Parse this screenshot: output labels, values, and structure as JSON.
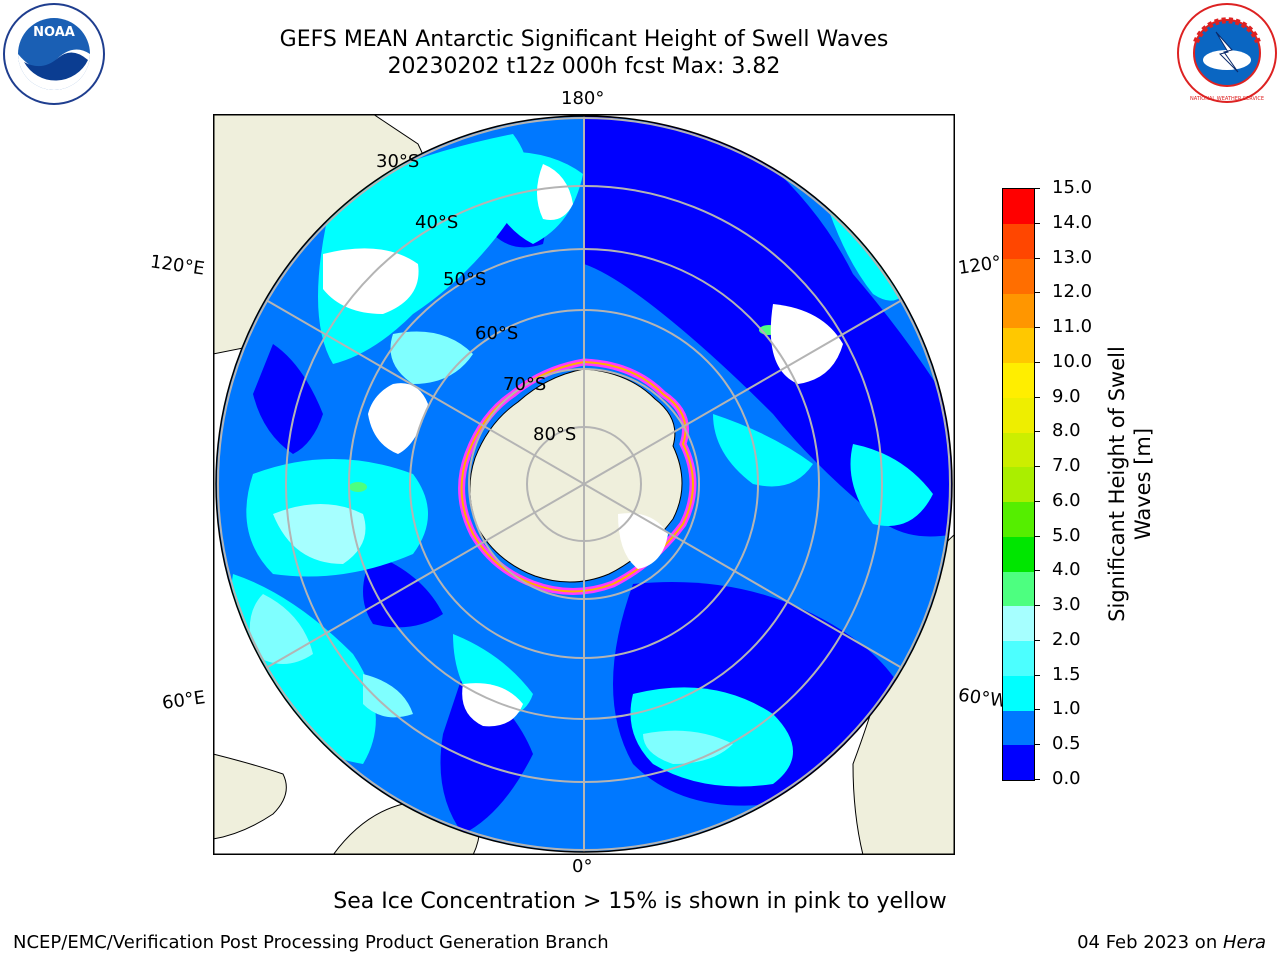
{
  "header": {
    "title_line1": "GEFS MEAN Antarctic Significant Height of Swell Waves",
    "title_line2": "20230202 t12z 000h fcst   Max: 3.82"
  },
  "map": {
    "longitude_labels": {
      "top": "180°",
      "bottom": "0°",
      "upper_left": "120°E",
      "upper_right": "120°",
      "lower_left": "60°E",
      "lower_right": "60°W"
    },
    "latitude_labels": [
      "30°S",
      "40°S",
      "50°S",
      "60°S",
      "70°S",
      "80°S"
    ],
    "colors": {
      "ocean_base": "#0078ff",
      "deep_blue": "#0000ff",
      "cyan": "#00ffff",
      "light_cyan": "#7fffff",
      "land": "#efefdc",
      "ice_edge": "#ff3cff"
    }
  },
  "colorbar": {
    "title": "Significant Height of Swell Waves [m]",
    "ticks": [
      "0.0",
      "0.5",
      "1.0",
      "1.5",
      "2.0",
      "3.0",
      "4.0",
      "5.0",
      "6.0",
      "7.0",
      "8.0",
      "9.0",
      "10.0",
      "11.0",
      "12.0",
      "13.0",
      "14.0",
      "15.0"
    ],
    "colors": [
      "#0000ff",
      "#0078ff",
      "#00ffff",
      "#4cffff",
      "#a6ffff",
      "#4dff80",
      "#00e600",
      "#55ee00",
      "#aaee00",
      "#ccee00",
      "#eeee00",
      "#ffee00",
      "#ffc800",
      "#ff9600",
      "#ff6e00",
      "#ff4600",
      "#ff0000"
    ]
  },
  "footer": {
    "sea_ice_note": "Sea Ice Concentration > 15% is shown in pink to yellow",
    "credit": "NCEP/EMC/Verification Post Processing Product Generation Branch",
    "date_prefix": "04 Feb 2023 on ",
    "machine": "Hera"
  },
  "logos": {
    "left": "NOAA",
    "right": "NATIONAL WEATHER SERVICE"
  }
}
